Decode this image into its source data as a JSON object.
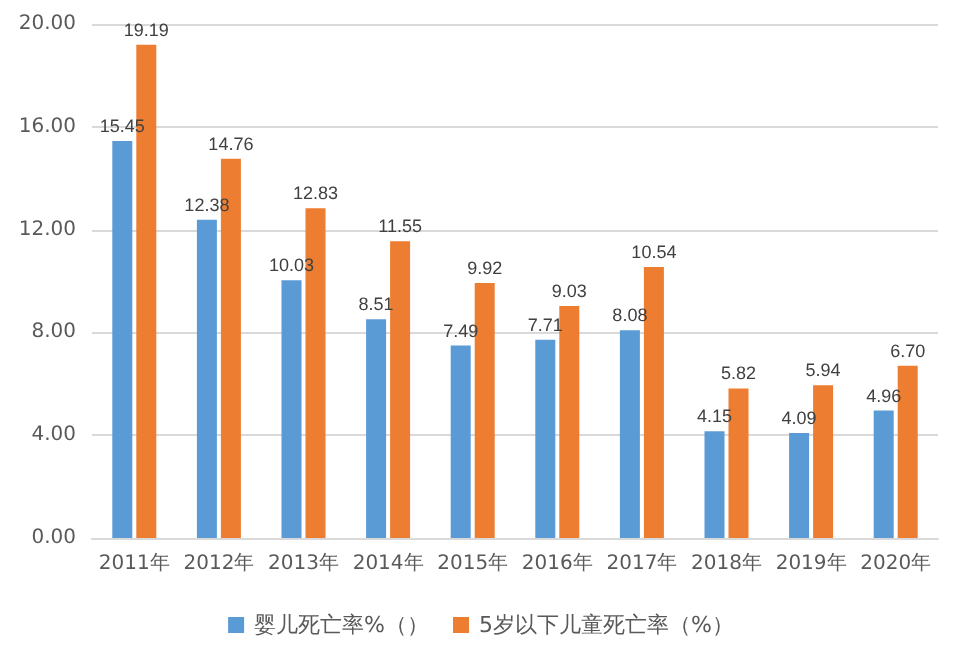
{
  "chart_data": {
    "type": "bar",
    "categories": [
      "2011年",
      "2012年",
      "2013年",
      "2014年",
      "2015年",
      "2016年",
      "2017年",
      "2018年",
      "2019年",
      "2020年"
    ],
    "series": [
      {
        "name": "婴儿死亡率%（）",
        "color": "#5b9bd5",
        "values": [
          15.45,
          12.38,
          10.03,
          8.51,
          7.49,
          7.71,
          8.08,
          4.15,
          4.09,
          4.96
        ],
        "value_labels": [
          "15.45",
          "12.38",
          "10.03",
          "8.51",
          "7.49",
          "7.71",
          "8.08",
          "4.15",
          "4.09",
          "4.96"
        ]
      },
      {
        "name": "5岁以下儿童死亡率（%）",
        "color": "#ed7d31",
        "values": [
          19.19,
          14.76,
          12.83,
          11.55,
          9.92,
          9.03,
          10.54,
          5.82,
          5.94,
          6.7
        ],
        "value_labels": [
          "19.19",
          "14.76",
          "12.83",
          "11.55",
          "9.92",
          "9.03",
          "10.54",
          "5.82",
          "5.94",
          "6.70"
        ]
      }
    ],
    "ylim": [
      0,
      20
    ],
    "yticks": [
      "0.00",
      "4.00",
      "8.00",
      "12.00",
      "16.00",
      "20.00"
    ],
    "grid": "y",
    "legend": "bottom"
  }
}
